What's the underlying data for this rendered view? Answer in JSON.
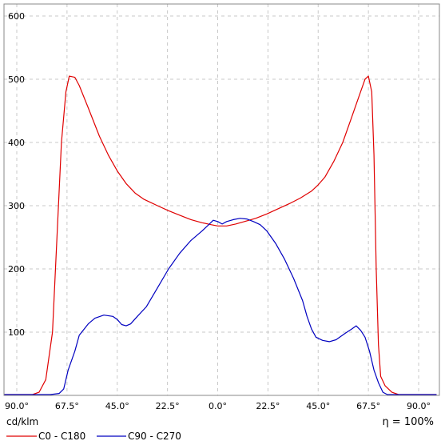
{
  "chart_data": {
    "type": "line",
    "units_label": "cd/klm",
    "efficiency_label": "η = 100%",
    "x_tick_labels": [
      "90.0°",
      "67.5°",
      "45.0°",
      "22.5°",
      "0.0°",
      "22.5°",
      "45.0°",
      "67.5°",
      "90.0°"
    ],
    "x_ticks": [
      -90,
      -67.5,
      -45,
      -22.5,
      0,
      22.5,
      45,
      67.5,
      90
    ],
    "xlim": [
      -90,
      90
    ],
    "y_ticks": [
      100,
      200,
      300,
      400,
      500,
      600
    ],
    "ylim": [
      0,
      600
    ],
    "grid": true,
    "legend_position": "bottom-left",
    "series": [
      {
        "name": "C0 - C180",
        "color": "#e00000",
        "points": [
          [
            -98,
            0
          ],
          [
            -87,
            0
          ],
          [
            -83,
            0
          ],
          [
            -80,
            5
          ],
          [
            -77,
            25
          ],
          [
            -74,
            100
          ],
          [
            -72,
            250
          ],
          [
            -70,
            400
          ],
          [
            -68,
            480
          ],
          [
            -66.5,
            505
          ],
          [
            -64,
            503
          ],
          [
            -62,
            490
          ],
          [
            -58,
            455
          ],
          [
            -53,
            410
          ],
          [
            -49,
            380
          ],
          [
            -45,
            355
          ],
          [
            -41,
            335
          ],
          [
            -37,
            320
          ],
          [
            -33,
            310
          ],
          [
            -27,
            300
          ],
          [
            -22,
            292
          ],
          [
            -17,
            285
          ],
          [
            -12,
            278
          ],
          [
            -7,
            273
          ],
          [
            -3,
            270
          ],
          [
            0,
            268
          ],
          [
            4,
            268
          ],
          [
            8,
            271
          ],
          [
            12,
            275
          ],
          [
            17,
            280
          ],
          [
            22,
            287
          ],
          [
            27,
            295
          ],
          [
            32,
            303
          ],
          [
            37,
            312
          ],
          [
            42,
            323
          ],
          [
            45,
            333
          ],
          [
            48,
            345
          ],
          [
            52,
            370
          ],
          [
            56,
            400
          ],
          [
            60,
            440
          ],
          [
            64,
            480
          ],
          [
            66,
            500
          ],
          [
            67.5,
            505
          ],
          [
            69,
            480
          ],
          [
            70,
            380
          ],
          [
            71,
            200
          ],
          [
            72,
            80
          ],
          [
            73,
            30
          ],
          [
            75,
            15
          ],
          [
            78,
            5
          ],
          [
            81,
            0
          ],
          [
            90,
            0
          ],
          [
            98,
            0
          ]
        ]
      },
      {
        "name": "C90 - C270",
        "color": "#0000c0",
        "points": [
          [
            -98,
            0
          ],
          [
            -75,
            0
          ],
          [
            -71,
            3
          ],
          [
            -69,
            10
          ],
          [
            -67,
            40
          ],
          [
            -64,
            70
          ],
          [
            -62,
            95
          ],
          [
            -58,
            113
          ],
          [
            -55,
            122
          ],
          [
            -51,
            127
          ],
          [
            -47,
            125
          ],
          [
            -45,
            120
          ],
          [
            -43,
            112
          ],
          [
            -41,
            110
          ],
          [
            -39,
            113
          ],
          [
            -36,
            125
          ],
          [
            -32,
            140
          ],
          [
            -27,
            170
          ],
          [
            -22,
            200
          ],
          [
            -17,
            225
          ],
          [
            -12,
            245
          ],
          [
            -7,
            260
          ],
          [
            -4,
            270
          ],
          [
            -2,
            277
          ],
          [
            0,
            275
          ],
          [
            2,
            271
          ],
          [
            4,
            275
          ],
          [
            7,
            278
          ],
          [
            10,
            280
          ],
          [
            13,
            279
          ],
          [
            16,
            275
          ],
          [
            19,
            270
          ],
          [
            22,
            260
          ],
          [
            26,
            240
          ],
          [
            30,
            215
          ],
          [
            34,
            185
          ],
          [
            38,
            150
          ],
          [
            40,
            125
          ],
          [
            42,
            105
          ],
          [
            44,
            92
          ],
          [
            47,
            87
          ],
          [
            50,
            85
          ],
          [
            53,
            88
          ],
          [
            57,
            98
          ],
          [
            60,
            105
          ],
          [
            62,
            110
          ],
          [
            64,
            103
          ],
          [
            66,
            92
          ],
          [
            68,
            70
          ],
          [
            70,
            40
          ],
          [
            72,
            20
          ],
          [
            74,
            5
          ],
          [
            76,
            0
          ],
          [
            98,
            0
          ]
        ]
      }
    ]
  }
}
